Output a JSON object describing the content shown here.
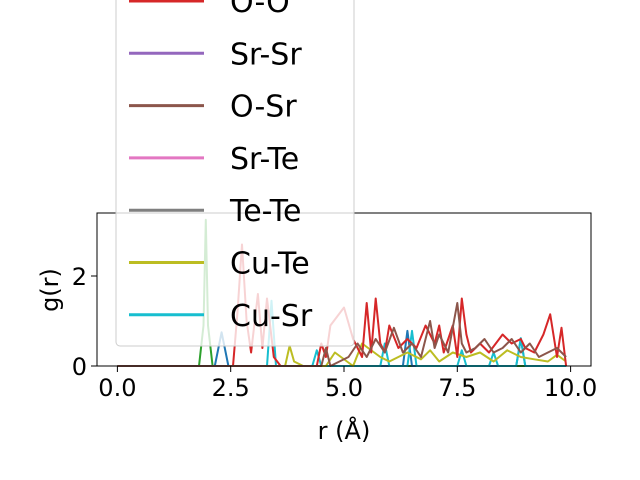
{
  "chart_data": {
    "type": "line",
    "xlabel": "r (Å)",
    "ylabel": "g(r)",
    "xlim": [
      -0.45,
      10.45
    ],
    "ylim": [
      0,
      3.4
    ],
    "xticks": [
      0.0,
      2.5,
      5.0,
      7.5,
      10.0
    ],
    "xtick_labels": [
      "0.0",
      "2.5",
      "5.0",
      "7.5",
      "10.0"
    ],
    "yticks": [
      0,
      2
    ],
    "ytick_labels": [
      "0",
      "2"
    ],
    "grid": false,
    "legend_placement": "upper-left, overlapping plot",
    "legend_entries": [
      {
        "label": "O-O",
        "color": "#d62728"
      },
      {
        "label": "Sr-Sr",
        "color": "#9467bd"
      },
      {
        "label": "O-Sr",
        "color": "#8c564b"
      },
      {
        "label": "Sr-Te",
        "color": "#e377c2"
      },
      {
        "label": "Te-Te",
        "color": "#7f7f7f"
      },
      {
        "label": "Cu-Te",
        "color": "#bcbd22"
      },
      {
        "label": "Cu-Sr",
        "color": "#17becf"
      }
    ],
    "series": [
      {
        "color": "#2ca02c",
        "x": [
          0,
          1.8,
          1.9,
          1.95,
          2.0,
          2.1,
          9.9
        ],
        "y": [
          0,
          0,
          0.9,
          3.25,
          0.9,
          0,
          0
        ]
      },
      {
        "color": "#1f77b4",
        "x": [
          0,
          2.15,
          2.3,
          2.45,
          6.3,
          6.4,
          6.5,
          8.8,
          8.9,
          9.0,
          9.9
        ],
        "y": [
          0,
          0,
          0.75,
          0,
          0,
          0.78,
          0,
          0,
          0.6,
          0,
          0
        ]
      },
      {
        "color": "#17becf",
        "x": [
          0,
          3.3,
          3.4,
          3.5,
          4.3,
          4.4,
          4.5,
          5.8,
          5.9,
          6.0,
          6.4,
          6.5,
          6.6,
          7.5,
          7.6,
          7.7,
          8.2,
          8.3,
          8.4,
          8.8,
          8.9,
          9.0,
          9.9
        ],
        "y": [
          0,
          0,
          1.45,
          0,
          0,
          0.35,
          0,
          0,
          0.5,
          0,
          0,
          0.78,
          0,
          0,
          0.35,
          0,
          0,
          0.3,
          0,
          0,
          0.62,
          0,
          0
        ]
      },
      {
        "color": "#bcbd22",
        "x": [
          0,
          3.7,
          3.8,
          3.9,
          4.1,
          4.6,
          4.8,
          5.2,
          5.4,
          5.8,
          6.0,
          6.4,
          6.7,
          6.9,
          7.1,
          7.4,
          7.7,
          8.0,
          8.3,
          8.6,
          8.9,
          9.2,
          9.5,
          9.7,
          9.9
        ],
        "y": [
          0,
          0,
          0.45,
          0.1,
          0,
          0,
          0.3,
          0,
          0.5,
          0.2,
          0.1,
          0.3,
          0.15,
          0.35,
          0.1,
          0.3,
          0.2,
          0.3,
          0.1,
          0.35,
          0.2,
          0.15,
          0.1,
          0.25,
          0.1
        ]
      },
      {
        "color": "#d62728",
        "x": [
          0,
          2.55,
          2.65,
          2.75,
          2.85,
          2.95,
          3.1,
          3.2,
          3.3,
          3.45,
          3.6,
          4.4,
          4.5,
          4.6,
          4.7,
          5.0,
          5.2,
          5.4,
          5.5,
          5.6,
          5.7,
          5.8,
          5.9,
          6.0,
          6.2,
          6.4,
          6.6,
          6.8,
          7.0,
          7.1,
          7.2,
          7.4,
          7.5,
          7.6,
          7.7,
          7.8,
          8.0,
          8.2,
          8.5,
          8.7,
          8.9,
          9.0,
          9.2,
          9.4,
          9.55,
          9.7,
          9.8,
          9.9
        ],
        "y": [
          0,
          0,
          1.2,
          2.7,
          1.0,
          0.3,
          1.6,
          0.4,
          1.5,
          0.2,
          0,
          0,
          0.5,
          0.2,
          0.9,
          1.3,
          0.6,
          0.2,
          1.4,
          0.3,
          1.5,
          0.5,
          0.3,
          0.9,
          0.4,
          0.6,
          0.4,
          0.9,
          0.5,
          0.9,
          0.3,
          0.9,
          0.2,
          1.5,
          0.7,
          0.3,
          0.5,
          0.3,
          0.7,
          0.5,
          0.6,
          0.4,
          0.3,
          0.7,
          1.15,
          0.2,
          0.85,
          0
        ]
      },
      {
        "color": "#8c564b",
        "x": [
          0,
          4.5,
          4.6,
          4.7,
          5.1,
          5.3,
          5.5,
          5.7,
          5.9,
          6.1,
          6.3,
          6.5,
          6.7,
          6.9,
          7.0,
          7.1,
          7.3,
          7.5,
          7.6,
          7.7,
          7.9,
          8.1,
          8.3,
          8.5,
          8.7,
          8.9,
          9.1,
          9.3,
          9.5,
          9.7,
          9.9
        ],
        "y": [
          0,
          0,
          0.4,
          0,
          0.2,
          0.5,
          0.2,
          0.6,
          0.3,
          0.85,
          0.3,
          0.5,
          0.2,
          1.0,
          0.4,
          0.7,
          0.3,
          1.4,
          0.5,
          0.3,
          0.4,
          0.6,
          0.3,
          0.4,
          0.6,
          0.3,
          0.5,
          0.2,
          0.3,
          0.4,
          0.2
        ]
      }
    ]
  }
}
